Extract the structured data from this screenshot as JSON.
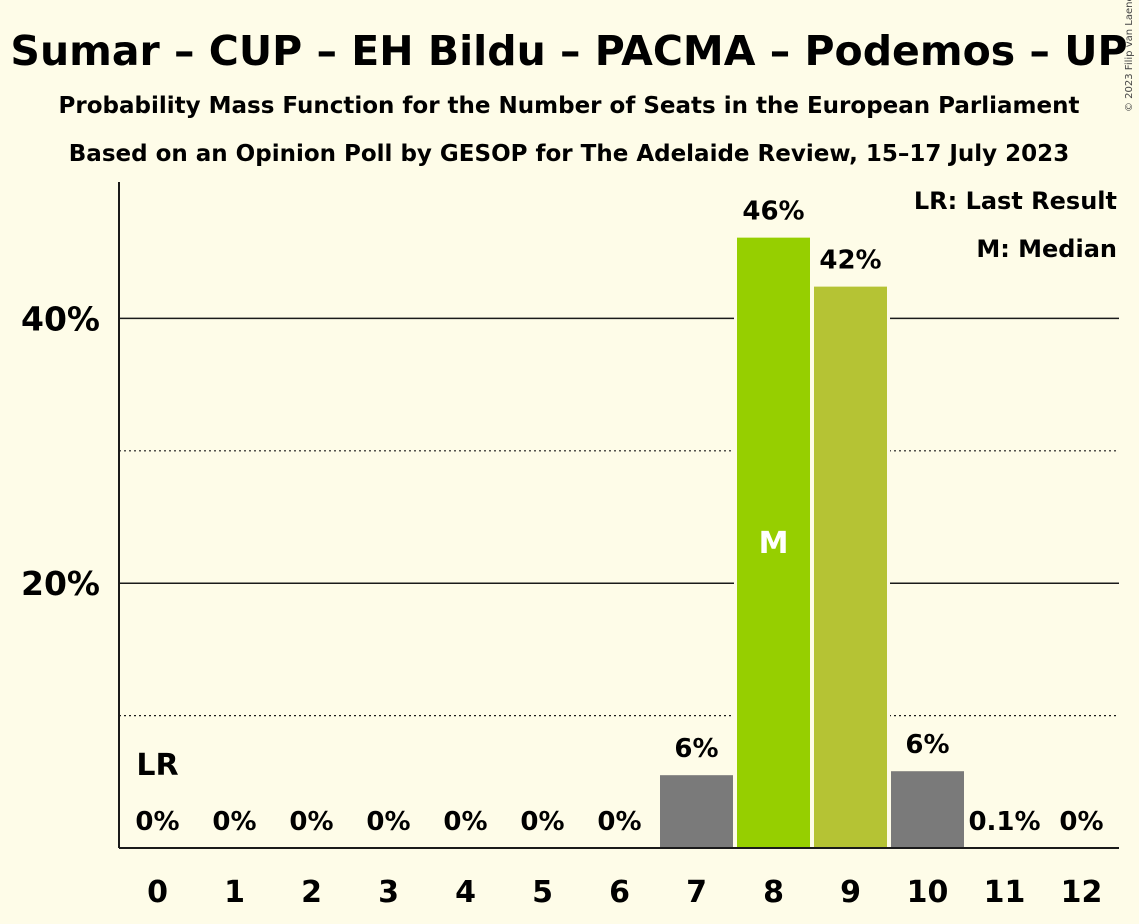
{
  "chart_data": {
    "type": "bar",
    "title": "Sumar – CUP – EH Bildu – PACMA – Podemos – UP",
    "subtitle_1": "Probability Mass Function for the Number of Seats in the European Parliament",
    "subtitle_2": "Based on an Opinion Poll by GESOP for The Adelaide Review, 15–17 July 2023",
    "copyright": "© 2023 Filip van Laenen",
    "categories": [
      "0",
      "1",
      "2",
      "3",
      "4",
      "5",
      "6",
      "7",
      "8",
      "9",
      "10",
      "11",
      "12"
    ],
    "values": [
      0,
      0,
      0,
      0,
      0,
      0,
      0,
      5.5,
      46.1,
      42.4,
      5.8,
      0.1,
      0
    ],
    "value_labels": [
      "0%",
      "0%",
      "0%",
      "0%",
      "0%",
      "0%",
      "0%",
      "6%",
      "46%",
      "42%",
      "6%",
      "0.1%",
      "0%"
    ],
    "bar_colors": [
      "#7a7a7a",
      "#7a7a7a",
      "#7a7a7a",
      "#7a7a7a",
      "#7a7a7a",
      "#7a7a7a",
      "#7a7a7a",
      "#7a7a7a",
      "#96cf00",
      "#b5c334",
      "#7a7a7a",
      "#7a7a7a",
      "#7a7a7a"
    ],
    "ylim": [
      0,
      50
    ],
    "y_ticks": [
      {
        "value": 40,
        "label": "40%",
        "style": "solid"
      },
      {
        "value": 30,
        "label": "",
        "style": "dotted"
      },
      {
        "value": 20,
        "label": "20%",
        "style": "solid"
      },
      {
        "value": 10,
        "label": "",
        "style": "dotted"
      }
    ],
    "last_result_index": 0,
    "last_result_label": "LR",
    "median_index": 8,
    "median_label": "M",
    "legend": [
      "LR: Last Result",
      "M: Median"
    ],
    "legend_position": "top-right",
    "grid": true
  }
}
